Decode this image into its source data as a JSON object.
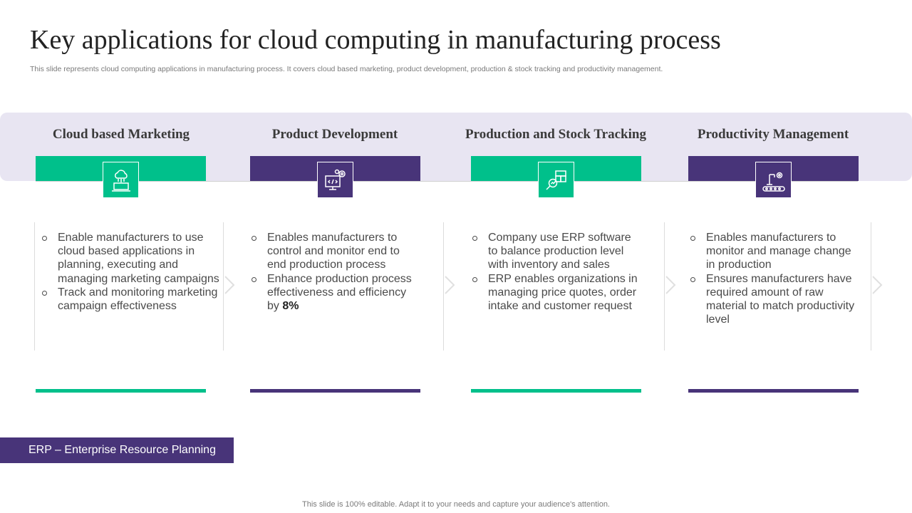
{
  "title": "Key applications for cloud computing in manufacturing process",
  "subtitle": "This slide represents cloud computing applications in manufacturing process. It covers cloud based marketing, product development, production & stock tracking and productivity management.",
  "colors": {
    "green": "#00c08b",
    "purple": "#483479",
    "band": "#e8e5f2"
  },
  "columns": [
    {
      "title": "Cloud based Marketing",
      "icon": "cloud-laptop-icon",
      "accent": "green",
      "bullets": [
        {
          "text": "Enable manufacturers  to use cloud based applications in planning, executing and managing marketing campaigns"
        },
        {
          "text": "Track and monitoring marketing campaign effectiveness"
        }
      ]
    },
    {
      "title": "Product Development",
      "icon": "monitor-gears-icon",
      "accent": "purple",
      "bullets": [
        {
          "text": "Enables manufacturers  to control and monitor end to end production process"
        },
        {
          "text": "Enhance  production process effectiveness and efficiency by ",
          "emphasis": "8%"
        }
      ]
    },
    {
      "title": "Production and Stock Tracking",
      "icon": "magnifier-boxes-icon",
      "accent": "green",
      "bullets": [
        {
          "text": "Company use ERP software to balance production level with inventory  and sales"
        },
        {
          "text": "ERP enables organizations in managing price quotes, order intake and customer request"
        }
      ]
    },
    {
      "title": "Productivity Management",
      "icon": "robot-arm-conveyor-icon",
      "accent": "purple",
      "bullets": [
        {
          "text": "Enables manufacturers  to monitor and manage change in production"
        },
        {
          "text": "Ensures manufacturers have required amount of raw material to match productivity level"
        }
      ]
    }
  ],
  "erp_note": "ERP – Enterprise Resource Planning",
  "footer": "This slide is 100% editable. Adapt it to your needs and capture your audience's attention."
}
